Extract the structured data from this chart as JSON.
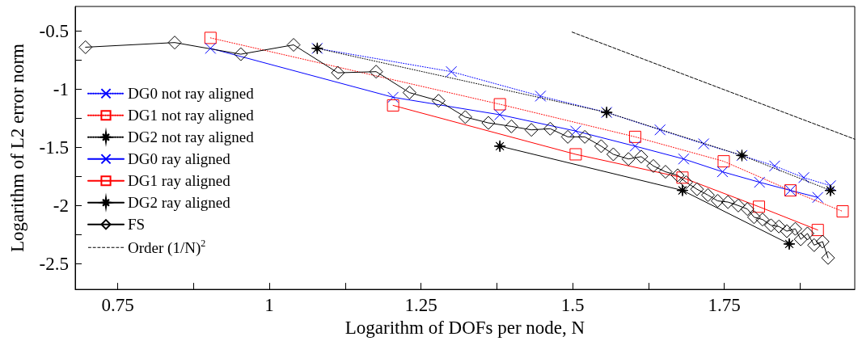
{
  "chart_data": {
    "type": "line",
    "xlabel": "Logarithm of DOFs per node, N",
    "ylabel": "Logarithm of L2 error norm",
    "xlim": [
      0.68,
      1.965
    ],
    "ylim": [
      -2.72,
      -0.29
    ],
    "xticks": [
      0.75,
      {
        "value": 0.875,
        "label": null
      },
      1,
      {
        "value": 1.125,
        "label": null
      },
      1.25,
      {
        "value": 1.375,
        "label": null
      },
      1.5,
      {
        "value": 1.625,
        "label": null
      },
      1.75,
      {
        "value": 1.875,
        "label": null
      }
    ],
    "yticks": [
      -2.5,
      {
        "value": -2.25,
        "label": null
      },
      -2,
      {
        "value": -1.75,
        "label": null
      },
      -1.5,
      {
        "value": -1.25,
        "label": null
      },
      -1,
      {
        "value": -0.75,
        "label": null
      },
      -0.5
    ],
    "grid": false,
    "legend": "left",
    "series": [
      {
        "name": "DG0 not ray aligned",
        "color": "#0000ff",
        "marker": "cross",
        "line_style": "dotted",
        "x": [
          1.079,
          1.3,
          1.447,
          1.556,
          1.644,
          1.716,
          1.779,
          1.833,
          1.881,
          1.925
        ],
        "values": [
          -0.65,
          -0.85,
          -1.06,
          -1.2,
          -1.35,
          -1.47,
          -1.57,
          -1.66,
          -1.76,
          -1.83
        ]
      },
      {
        "name": "DG1 not ray aligned",
        "color": "#ff0000",
        "marker": "square",
        "line_style": "dotted",
        "x": [
          0.903,
          1.38,
          1.603,
          1.749,
          1.859,
          1.945
        ],
        "values": [
          -0.56,
          -1.13,
          -1.41,
          -1.62,
          -1.87,
          -2.05
        ]
      },
      {
        "name": "DG2 not ray aligned",
        "color": "#000000",
        "marker": "star",
        "line_style": "dotted",
        "x": [
          1.079,
          1.556,
          1.779,
          1.925
        ],
        "values": [
          -0.65,
          -1.2,
          -1.57,
          -1.87
        ]
      },
      {
        "name": "DG0 ray aligned",
        "color": "#0000ff",
        "marker": "cross",
        "line_style": "solid",
        "x": [
          0.903,
          1.204,
          1.38,
          1.505,
          1.603,
          1.683,
          1.747,
          1.808,
          1.859,
          1.904
        ],
        "values": [
          -0.65,
          -1.07,
          -1.22,
          -1.36,
          -1.49,
          -1.6,
          -1.71,
          -1.8,
          -1.87,
          -1.93
        ]
      },
      {
        "name": "DG1 ray aligned",
        "color": "#ff0000",
        "marker": "square",
        "line_style": "solid",
        "x": [
          1.204,
          1.505,
          1.681,
          1.807,
          1.904
        ],
        "values": [
          -1.14,
          -1.56,
          -1.76,
          -2.01,
          -2.21
        ]
      },
      {
        "name": "DG2 ray aligned",
        "color": "#000000",
        "marker": "star",
        "line_style": "solid",
        "x": [
          1.38,
          1.681,
          1.857
        ],
        "values": [
          -1.49,
          -1.87,
          -2.33
        ]
      },
      {
        "name": "FS",
        "color": "#000000",
        "marker": "diamond",
        "line_style": "solid",
        "x": [
          0.697,
          0.844,
          0.953,
          1.04,
          1.113,
          1.176,
          1.231,
          1.279,
          1.323,
          1.361,
          1.399,
          1.432,
          1.463,
          1.492,
          1.52,
          1.547,
          1.567,
          1.592,
          1.613,
          1.633,
          1.653,
          1.673,
          1.687,
          1.705,
          1.723,
          1.739,
          1.756,
          1.773,
          1.788,
          1.799,
          1.813,
          1.827,
          1.84,
          1.853,
          1.867,
          1.876,
          1.887,
          1.898,
          1.912,
          1.921
        ],
        "values": [
          -0.64,
          -0.6,
          -0.7,
          -0.62,
          -0.86,
          -0.85,
          -1.03,
          -1.1,
          -1.24,
          -1.29,
          -1.32,
          -1.35,
          -1.34,
          -1.41,
          -1.41,
          -1.49,
          -1.56,
          -1.6,
          -1.58,
          -1.66,
          -1.71,
          -1.74,
          -1.8,
          -1.86,
          -1.91,
          -1.96,
          -1.97,
          -2.0,
          -2.03,
          -2.1,
          -2.12,
          -2.17,
          -2.18,
          -2.22,
          -2.2,
          -2.29,
          -2.24,
          -2.34,
          -2.31,
          -2.45
        ]
      },
      {
        "name": "Order (1/N)$^{2}$",
        "color": "#000000",
        "marker": "none",
        "line_style": "dashed",
        "x": [
          1.499,
          1.965
        ],
        "values": [
          -0.51,
          -1.43
        ]
      }
    ]
  }
}
